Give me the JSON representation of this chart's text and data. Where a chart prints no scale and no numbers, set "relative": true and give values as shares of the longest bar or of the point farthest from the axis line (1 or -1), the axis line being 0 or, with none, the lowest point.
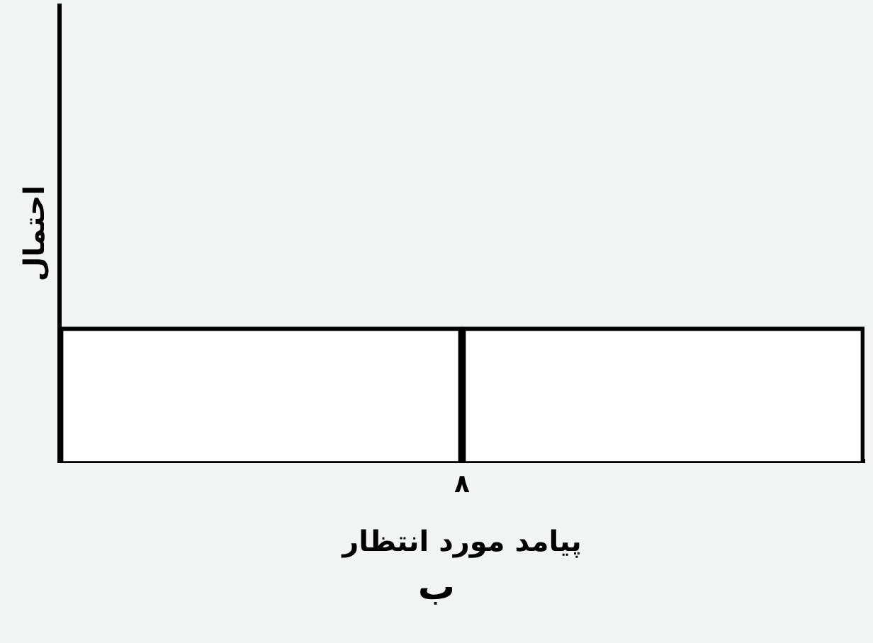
{
  "chart_data": {
    "type": "bar",
    "relative": true,
    "xlabel": "پیامد مورد انتظار",
    "ylabel": "احتمال",
    "categories": [
      null,
      null
    ],
    "values": [
      1,
      1
    ],
    "color": "#ffffff",
    "grid": false,
    "legend": false,
    "annotations": [
      "۸",
      "ب"
    ]
  }
}
